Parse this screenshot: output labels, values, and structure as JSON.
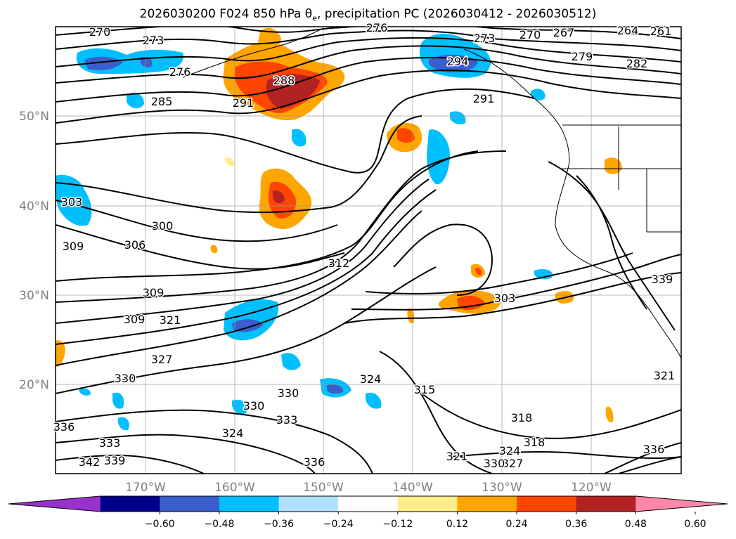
{
  "title_text": "2026030200 F024 850 hPa θ",
  "title_sub": "e",
  "title_tail": ", precipitation PC (2026030412 - 2026030512)",
  "chart_data": {
    "type": "heatmap",
    "title": "2026030200 F024 850 hPa θe, precipitation PC (2026030412 - 2026030512)",
    "x_ticks": [
      "170°W",
      "160°W",
      "150°W",
      "140°W",
      "130°W",
      "120°W"
    ],
    "y_ticks": [
      "20°N",
      "30°N",
      "40°N",
      "50°N"
    ],
    "colorbar": {
      "ticks": [
        "−0.60",
        "−0.48",
        "−0.36",
        "−0.24",
        "−0.12",
        "0.12",
        "0.24",
        "0.36",
        "0.48",
        "0.60"
      ],
      "colors": [
        "#9932CC",
        "#00008B",
        "#3A5FCD",
        "#00BFFF",
        "#B0E2FF",
        "#FFFFFF",
        "#FFEC8B",
        "#FFA500",
        "#FF4500",
        "#B22222",
        "#FF88AA"
      ]
    },
    "contour_labels": [
      "270",
      "273",
      "276",
      "285",
      "291",
      "288",
      "276",
      "273",
      "270",
      "267",
      "264",
      "261",
      "279",
      "282",
      "294",
      "291",
      "303",
      "300",
      "306",
      "309",
      "309",
      "312",
      "309",
      "321",
      "327",
      "330",
      "330",
      "330",
      "324",
      "324",
      "315",
      "303",
      "318",
      "318",
      "321",
      "324",
      "327",
      "330",
      "333",
      "336",
      "336",
      "339",
      "342",
      "333",
      "321",
      "339",
      "336"
    ]
  },
  "colors": {
    "contour": "#000000",
    "grid": "#999999",
    "coast": "#000000"
  }
}
